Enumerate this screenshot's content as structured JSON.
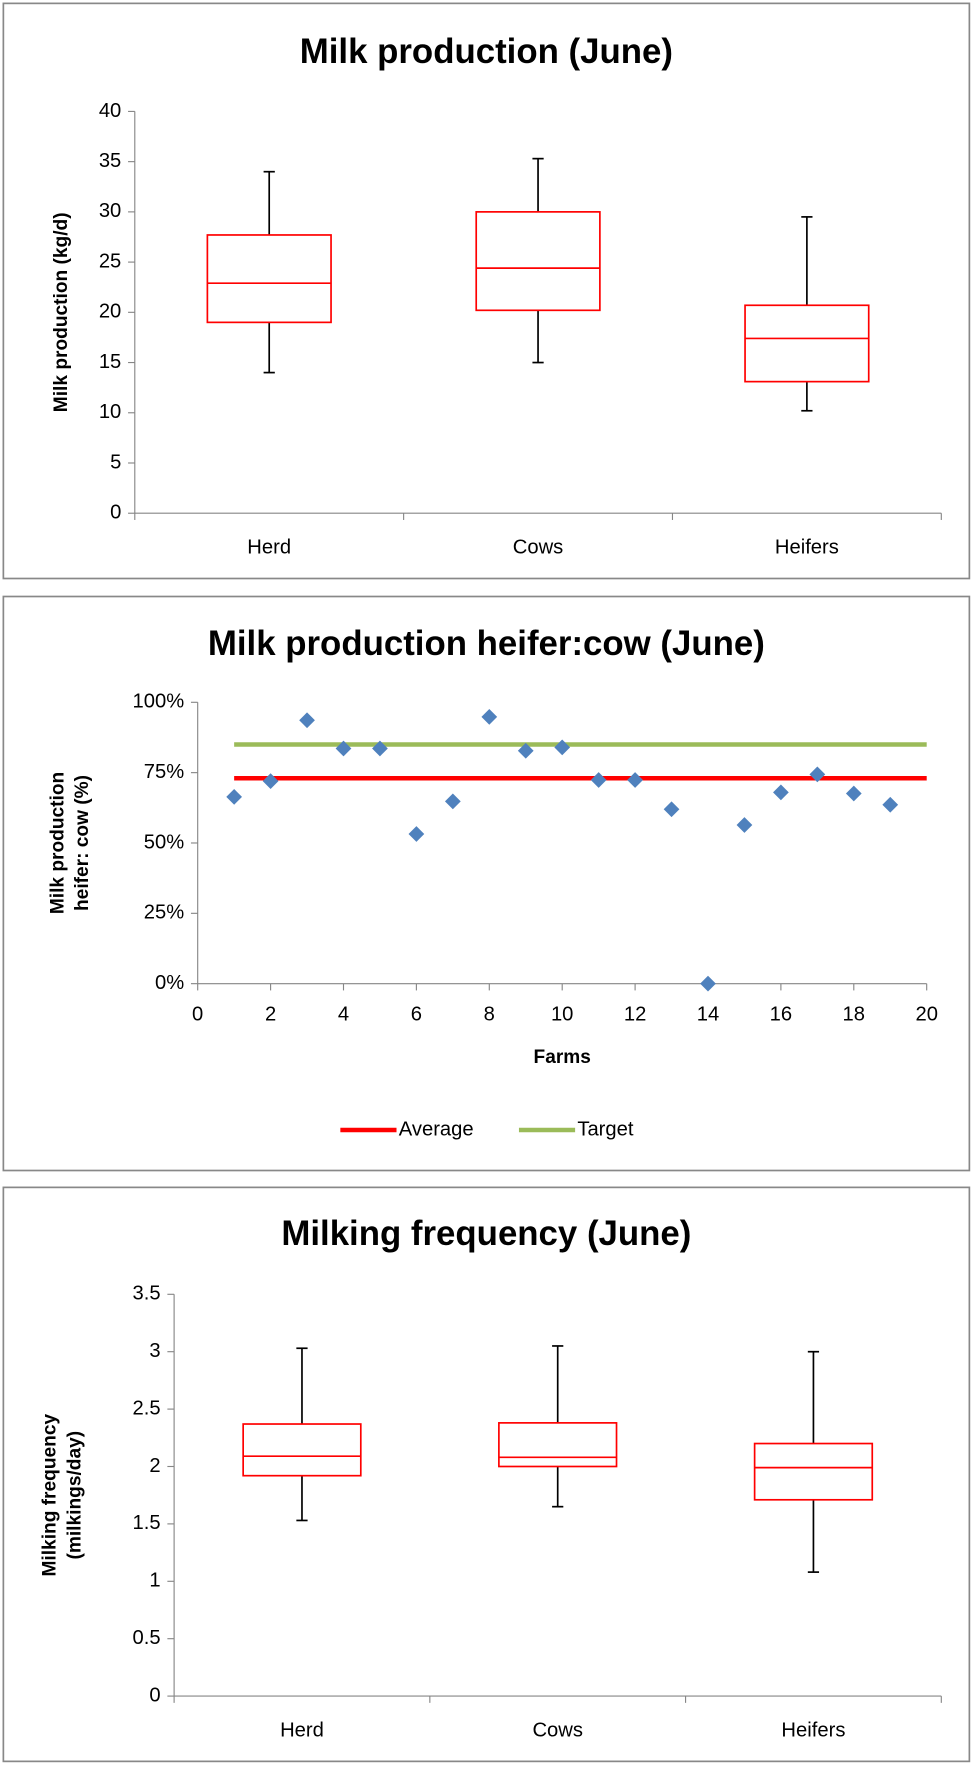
{
  "chart_data": [
    {
      "type": "box",
      "title": "Milk production (June)",
      "ylabel": "Milk production (kg/d)",
      "categories": [
        "Herd",
        "Cows",
        "Heifers"
      ],
      "color": "#ff0000",
      "min": [
        14.0,
        15.0,
        10.2
      ],
      "q1": [
        19.0,
        20.2,
        13.1
      ],
      "median": [
        22.9,
        24.4,
        17.4
      ],
      "q3": [
        27.7,
        30.0,
        20.7
      ],
      "max": [
        34.0,
        35.3,
        29.5
      ],
      "ylim": [
        0,
        40
      ],
      "yticks": [
        0,
        5,
        10,
        15,
        20,
        25,
        30,
        35,
        40
      ]
    },
    {
      "type": "scatter",
      "title": "Milk production heifer:cow (June)",
      "ylabel": [
        "Milk production",
        "heifer: cow (%)"
      ],
      "xlabel": "Farms",
      "x": [
        1,
        2,
        3,
        4,
        5,
        6,
        7,
        8,
        9,
        10,
        11,
        12,
        13,
        14,
        15,
        16,
        17,
        18,
        19
      ],
      "values": [
        66.4,
        72,
        93.6,
        83.6,
        83.6,
        53.2,
        64.8,
        94.8,
        82.8,
        84,
        72.4,
        72.4,
        62,
        0,
        56.4,
        68,
        74.4,
        67.6,
        63.6
      ],
      "color": "#4f81bd",
      "series": [
        {
          "name": "Average",
          "color": "#ff0000",
          "x": [
            1,
            20
          ],
          "values": [
            73,
            73
          ]
        },
        {
          "name": "Target",
          "color": "#9bbb59",
          "x": [
            1,
            20
          ],
          "values": [
            85,
            85
          ]
        }
      ],
      "xlim": [
        0,
        20
      ],
      "xticks": [
        0,
        2,
        4,
        6,
        8,
        10,
        12,
        14,
        16,
        18,
        20
      ],
      "ylim": [
        0,
        100
      ],
      "yticks": [
        {
          "value": 0,
          "label": "0%"
        },
        {
          "value": 25,
          "label": "25%"
        },
        {
          "value": 50,
          "label": "50%"
        },
        {
          "value": 75,
          "label": "75%"
        },
        {
          "value": 100,
          "label": "100%"
        }
      ],
      "legend": "bottom"
    },
    {
      "type": "box",
      "title": "Milking frequency (June)",
      "ylabel": [
        "Milking frequency",
        "(milkings/day)"
      ],
      "categories": [
        "Herd",
        "Cows",
        "Heifers"
      ],
      "color": "#ff0000",
      "min": [
        1.53,
        1.65,
        1.08
      ],
      "q1": [
        1.92,
        2.0,
        1.71
      ],
      "median": [
        2.09,
        2.08,
        1.99
      ],
      "q3": [
        2.37,
        2.38,
        2.2
      ],
      "max": [
        3.03,
        3.05,
        3.0
      ],
      "ylim": [
        0,
        3.5
      ],
      "yticks": [
        0,
        0.5,
        1,
        1.5,
        2,
        2.5,
        3,
        3.5
      ]
    }
  ]
}
